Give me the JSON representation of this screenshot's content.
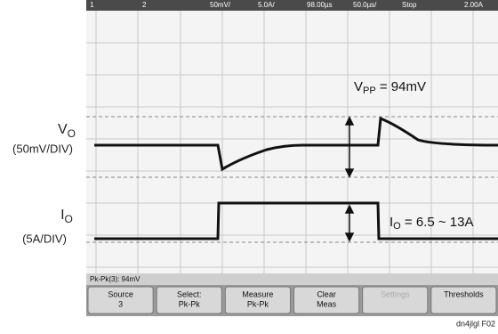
{
  "status_bar": {
    "ch1": "1",
    "ch2": "2",
    "ch1_scale": "50mV/",
    "ch3_scale": "5.0A/",
    "delay": "98.00µs",
    "timebase": "50.0µs/",
    "run_state": "Stop",
    "trigger_level": "2.00A"
  },
  "labels": {
    "vo_main": "V",
    "vo_sub": "O",
    "vo_scale": "(50mV/DIV)",
    "io_main": "I",
    "io_sub": "O",
    "io_scale": "(5A/DIV)"
  },
  "annotations": {
    "vpp_main": "V",
    "vpp_sub": "PP",
    "vpp_rest": " = 94mV",
    "io_main": "I",
    "io_sub": "O",
    "io_rest": " = 6.5 ~ 13A"
  },
  "measurement": "Pk-Pk(3): 94mV",
  "softkeys": [
    {
      "line1": "Source",
      "line2": "3"
    },
    {
      "line1": "Select:",
      "line2": "Pk-Pk"
    },
    {
      "line1": "Measure",
      "line2": "Pk-Pk"
    },
    {
      "line1": "Clear",
      "line2": "Meas"
    },
    {
      "line1": "Settings",
      "line2": ""
    },
    {
      "line1": "Thresholds",
      "line2": ""
    }
  ],
  "figure_id": "dn4jlgl F02"
}
